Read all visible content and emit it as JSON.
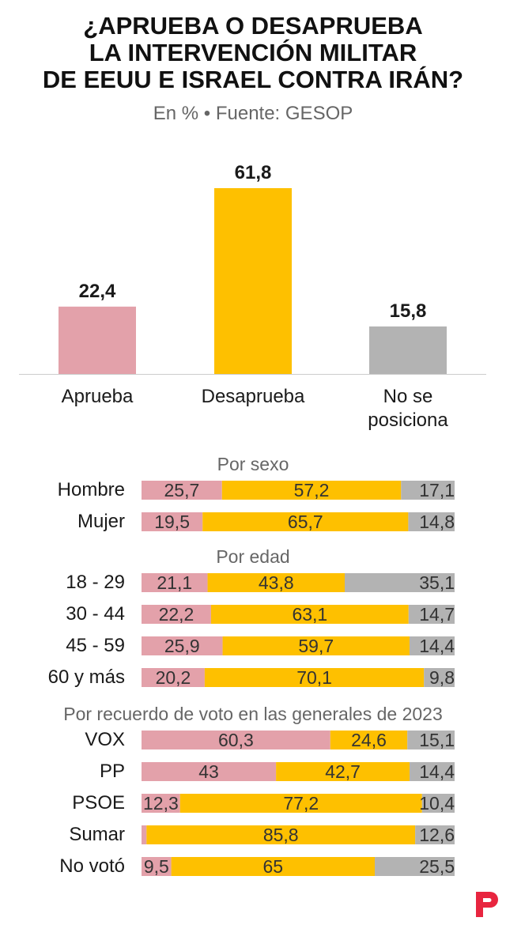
{
  "header": {
    "title_lines": [
      "¿APRUEBA O DESAPRUEBA",
      "LA INTERVENCIÓN MILITAR",
      "DE EEUU E ISRAEL CONTRA IRÁN?"
    ],
    "subtitle": "En % • Fuente: GESOP"
  },
  "colors": {
    "aprueba": "#e3a1aa",
    "desaprueba": "#fec000",
    "no_se_posiciona": "#b3b3b3",
    "logo": "#e8253f"
  },
  "logo_icon": "p-brand-icon",
  "chart_data": [
    {
      "type": "bar",
      "categories": [
        "Aprueba",
        "Desaprueba",
        "No se posiciona"
      ],
      "category_label_lines": [
        [
          "Aprueba"
        ],
        [
          "Desaprueba"
        ],
        [
          "No se",
          "posiciona"
        ]
      ],
      "values": [
        22.4,
        61.8,
        15.8
      ],
      "value_labels": [
        "22,4",
        "61,8",
        "15,8"
      ],
      "ylim": [
        0,
        61.8
      ],
      "grid": false
    },
    {
      "type": "bar",
      "stacked": true,
      "orientation": "horizontal",
      "series_keys": [
        "aprueba",
        "desaprueba",
        "no_se_posiciona"
      ],
      "groups": [
        {
          "title": "Por sexo",
          "rows": [
            {
              "label": "Hombre",
              "values": [
                25.7,
                57.2,
                17.1
              ],
              "value_labels": [
                "25,7",
                "57,2",
                "17,1"
              ]
            },
            {
              "label": "Mujer",
              "values": [
                19.5,
                65.7,
                14.8
              ],
              "value_labels": [
                "19,5",
                "65,7",
                "14,8"
              ]
            }
          ]
        },
        {
          "title": "Por edad",
          "rows": [
            {
              "label": "18 - 29",
              "values": [
                21.1,
                43.8,
                35.1
              ],
              "value_labels": [
                "21,1",
                "43,8",
                "35,1"
              ]
            },
            {
              "label": "30 - 44",
              "values": [
                22.2,
                63.1,
                14.7
              ],
              "value_labels": [
                "22,2",
                "63,1",
                "14,7"
              ]
            },
            {
              "label": "45 - 59",
              "values": [
                25.9,
                59.7,
                14.4
              ],
              "value_labels": [
                "25,9",
                "59,7",
                "14,4"
              ]
            },
            {
              "label": "60 y más",
              "values": [
                20.2,
                70.1,
                9.8
              ],
              "value_labels": [
                "20,2",
                "70,1",
                "9,8"
              ]
            }
          ]
        },
        {
          "title": "Por recuerdo de voto en las generales de 2023",
          "rows": [
            {
              "label": "VOX",
              "values": [
                60.3,
                24.6,
                15.1
              ],
              "value_labels": [
                "60,3",
                "24,6",
                "15,1"
              ]
            },
            {
              "label": "PP",
              "values": [
                43,
                42.7,
                14.4
              ],
              "value_labels": [
                "43",
                "42,7",
                "14,4"
              ]
            },
            {
              "label": "PSOE",
              "values": [
                12.3,
                77.2,
                10.4
              ],
              "value_labels": [
                "12,3",
                "77,2",
                "10,4"
              ]
            },
            {
              "label": "Sumar",
              "values": [
                1.6,
                85.8,
                12.6
              ],
              "value_labels": [
                "",
                "85,8",
                "12,6"
              ]
            },
            {
              "label": "No votó",
              "values": [
                9.5,
                65,
                25.5
              ],
              "value_labels": [
                "9,5",
                "65",
                "25,5"
              ]
            }
          ]
        }
      ]
    }
  ]
}
